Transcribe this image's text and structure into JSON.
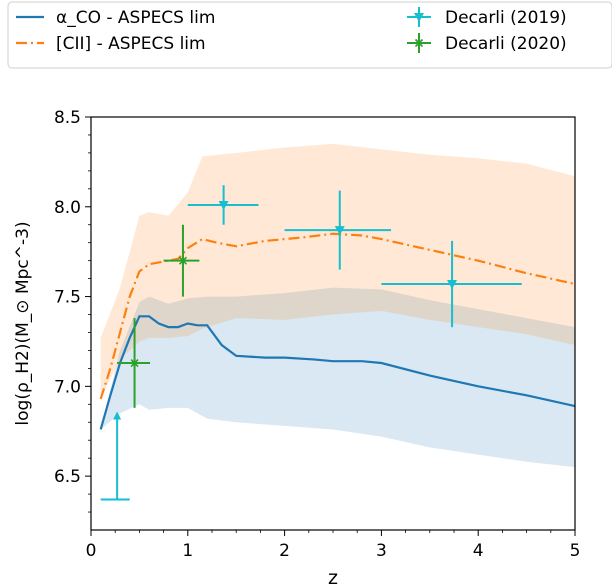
{
  "chart_data": {
    "type": "line",
    "xlabel": "z",
    "ylabel": "log(ρ_H2)(M_⊙ Mpc^-3)",
    "xlim": [
      0,
      5
    ],
    "ylim": [
      6.2,
      8.5
    ],
    "x_ticks": [
      "0",
      "1",
      "2",
      "3",
      "4",
      "5"
    ],
    "y_ticks": [
      "6.5",
      "7.0",
      "7.5",
      "8.0",
      "8.5"
    ],
    "grid": false,
    "legend_position": "top",
    "series": [
      {
        "name": "α_CO - ASPECS lim",
        "kind": "line",
        "color": "#1f77b4",
        "linestyle": "solid",
        "x": [
          0.1,
          0.2,
          0.3,
          0.4,
          0.5,
          0.6,
          0.7,
          0.8,
          0.9,
          1.0,
          1.1,
          1.2,
          1.35,
          1.5,
          1.8,
          2.0,
          2.3,
          2.5,
          2.8,
          3.0,
          3.5,
          4.0,
          4.5,
          5.0
        ],
        "y": [
          6.76,
          6.95,
          7.13,
          7.27,
          7.39,
          7.39,
          7.35,
          7.33,
          7.33,
          7.35,
          7.34,
          7.34,
          7.23,
          7.17,
          7.16,
          7.16,
          7.15,
          7.14,
          7.14,
          7.13,
          7.06,
          7.0,
          6.95,
          6.89
        ]
      },
      {
        "name": "α_CO band",
        "kind": "band",
        "color": "#1f77b4",
        "x": [
          0.1,
          0.3,
          0.5,
          0.6,
          0.8,
          1.0,
          1.2,
          1.5,
          2.0,
          2.5,
          3.0,
          3.5,
          4.0,
          4.5,
          5.0
        ],
        "lower": [
          6.76,
          6.85,
          6.9,
          6.87,
          6.88,
          6.88,
          6.82,
          6.8,
          6.78,
          6.76,
          6.72,
          6.66,
          6.62,
          6.58,
          6.55
        ],
        "upper": [
          6.76,
          7.2,
          7.47,
          7.5,
          7.46,
          7.49,
          7.5,
          7.5,
          7.52,
          7.55,
          7.54,
          7.48,
          7.43,
          7.38,
          7.33
        ]
      },
      {
        "name": "[CII] - ASPECS lim",
        "kind": "line",
        "color": "#ff7f0e",
        "linestyle": "dashdot",
        "x": [
          0.1,
          0.2,
          0.3,
          0.4,
          0.5,
          0.6,
          0.7,
          0.8,
          0.9,
          1.0,
          1.15,
          1.3,
          1.5,
          1.8,
          2.0,
          2.2,
          2.5,
          2.8,
          3.0,
          3.5,
          4.0,
          4.5,
          5.0
        ],
        "y": [
          6.93,
          7.1,
          7.3,
          7.5,
          7.64,
          7.68,
          7.69,
          7.7,
          7.71,
          7.77,
          7.82,
          7.8,
          7.78,
          7.81,
          7.82,
          7.83,
          7.85,
          7.84,
          7.82,
          7.76,
          7.7,
          7.63,
          7.57
        ]
      },
      {
        "name": "[CII] band",
        "kind": "band",
        "color": "#ff7f0e",
        "x": [
          0.1,
          0.3,
          0.5,
          0.6,
          0.8,
          1.0,
          1.15,
          1.5,
          2.0,
          2.5,
          3.0,
          3.5,
          4.0,
          4.5,
          5.0
        ],
        "lower": [
          6.93,
          7.15,
          7.25,
          7.27,
          7.27,
          7.28,
          7.32,
          7.38,
          7.37,
          7.4,
          7.42,
          7.37,
          7.33,
          7.29,
          7.23
        ],
        "upper": [
          7.27,
          7.55,
          7.95,
          7.97,
          7.95,
          8.08,
          8.28,
          8.3,
          8.33,
          8.35,
          8.32,
          8.29,
          8.27,
          8.24,
          8.17
        ]
      },
      {
        "name": "Decarli (2019)",
        "kind": "errorbar",
        "color": "#17becf",
        "marker": "triangle-down",
        "points": [
          {
            "x": 0.27,
            "y": 6.37,
            "xerr": [
              0.17,
              0.13
            ],
            "yerr": [
              0.0,
              0.0
            ],
            "upper_limit": true,
            "arrow_to": 6.86
          },
          {
            "x": 1.37,
            "y": 8.01,
            "xerr": [
              0.37,
              0.36
            ],
            "yerr": [
              0.11,
              0.11
            ]
          },
          {
            "x": 2.57,
            "y": 7.87,
            "xerr": [
              0.57,
              0.53
            ],
            "yerr": [
              0.22,
              0.22
            ]
          },
          {
            "x": 3.73,
            "y": 7.57,
            "xerr": [
              0.73,
              0.72
            ],
            "yerr": [
              0.24,
              0.24
            ]
          }
        ]
      },
      {
        "name": "Decarli (2020)",
        "kind": "errorbar",
        "color": "#2ca02c",
        "marker": "x-star",
        "points": [
          {
            "x": 0.45,
            "y": 7.13,
            "xerr": [
              0.18,
              0.16
            ],
            "yerr": [
              0.25,
              0.25
            ]
          },
          {
            "x": 0.95,
            "y": 7.7,
            "xerr": [
              0.2,
              0.17
            ],
            "yerr": [
              0.2,
              0.2
            ]
          }
        ]
      }
    ]
  }
}
